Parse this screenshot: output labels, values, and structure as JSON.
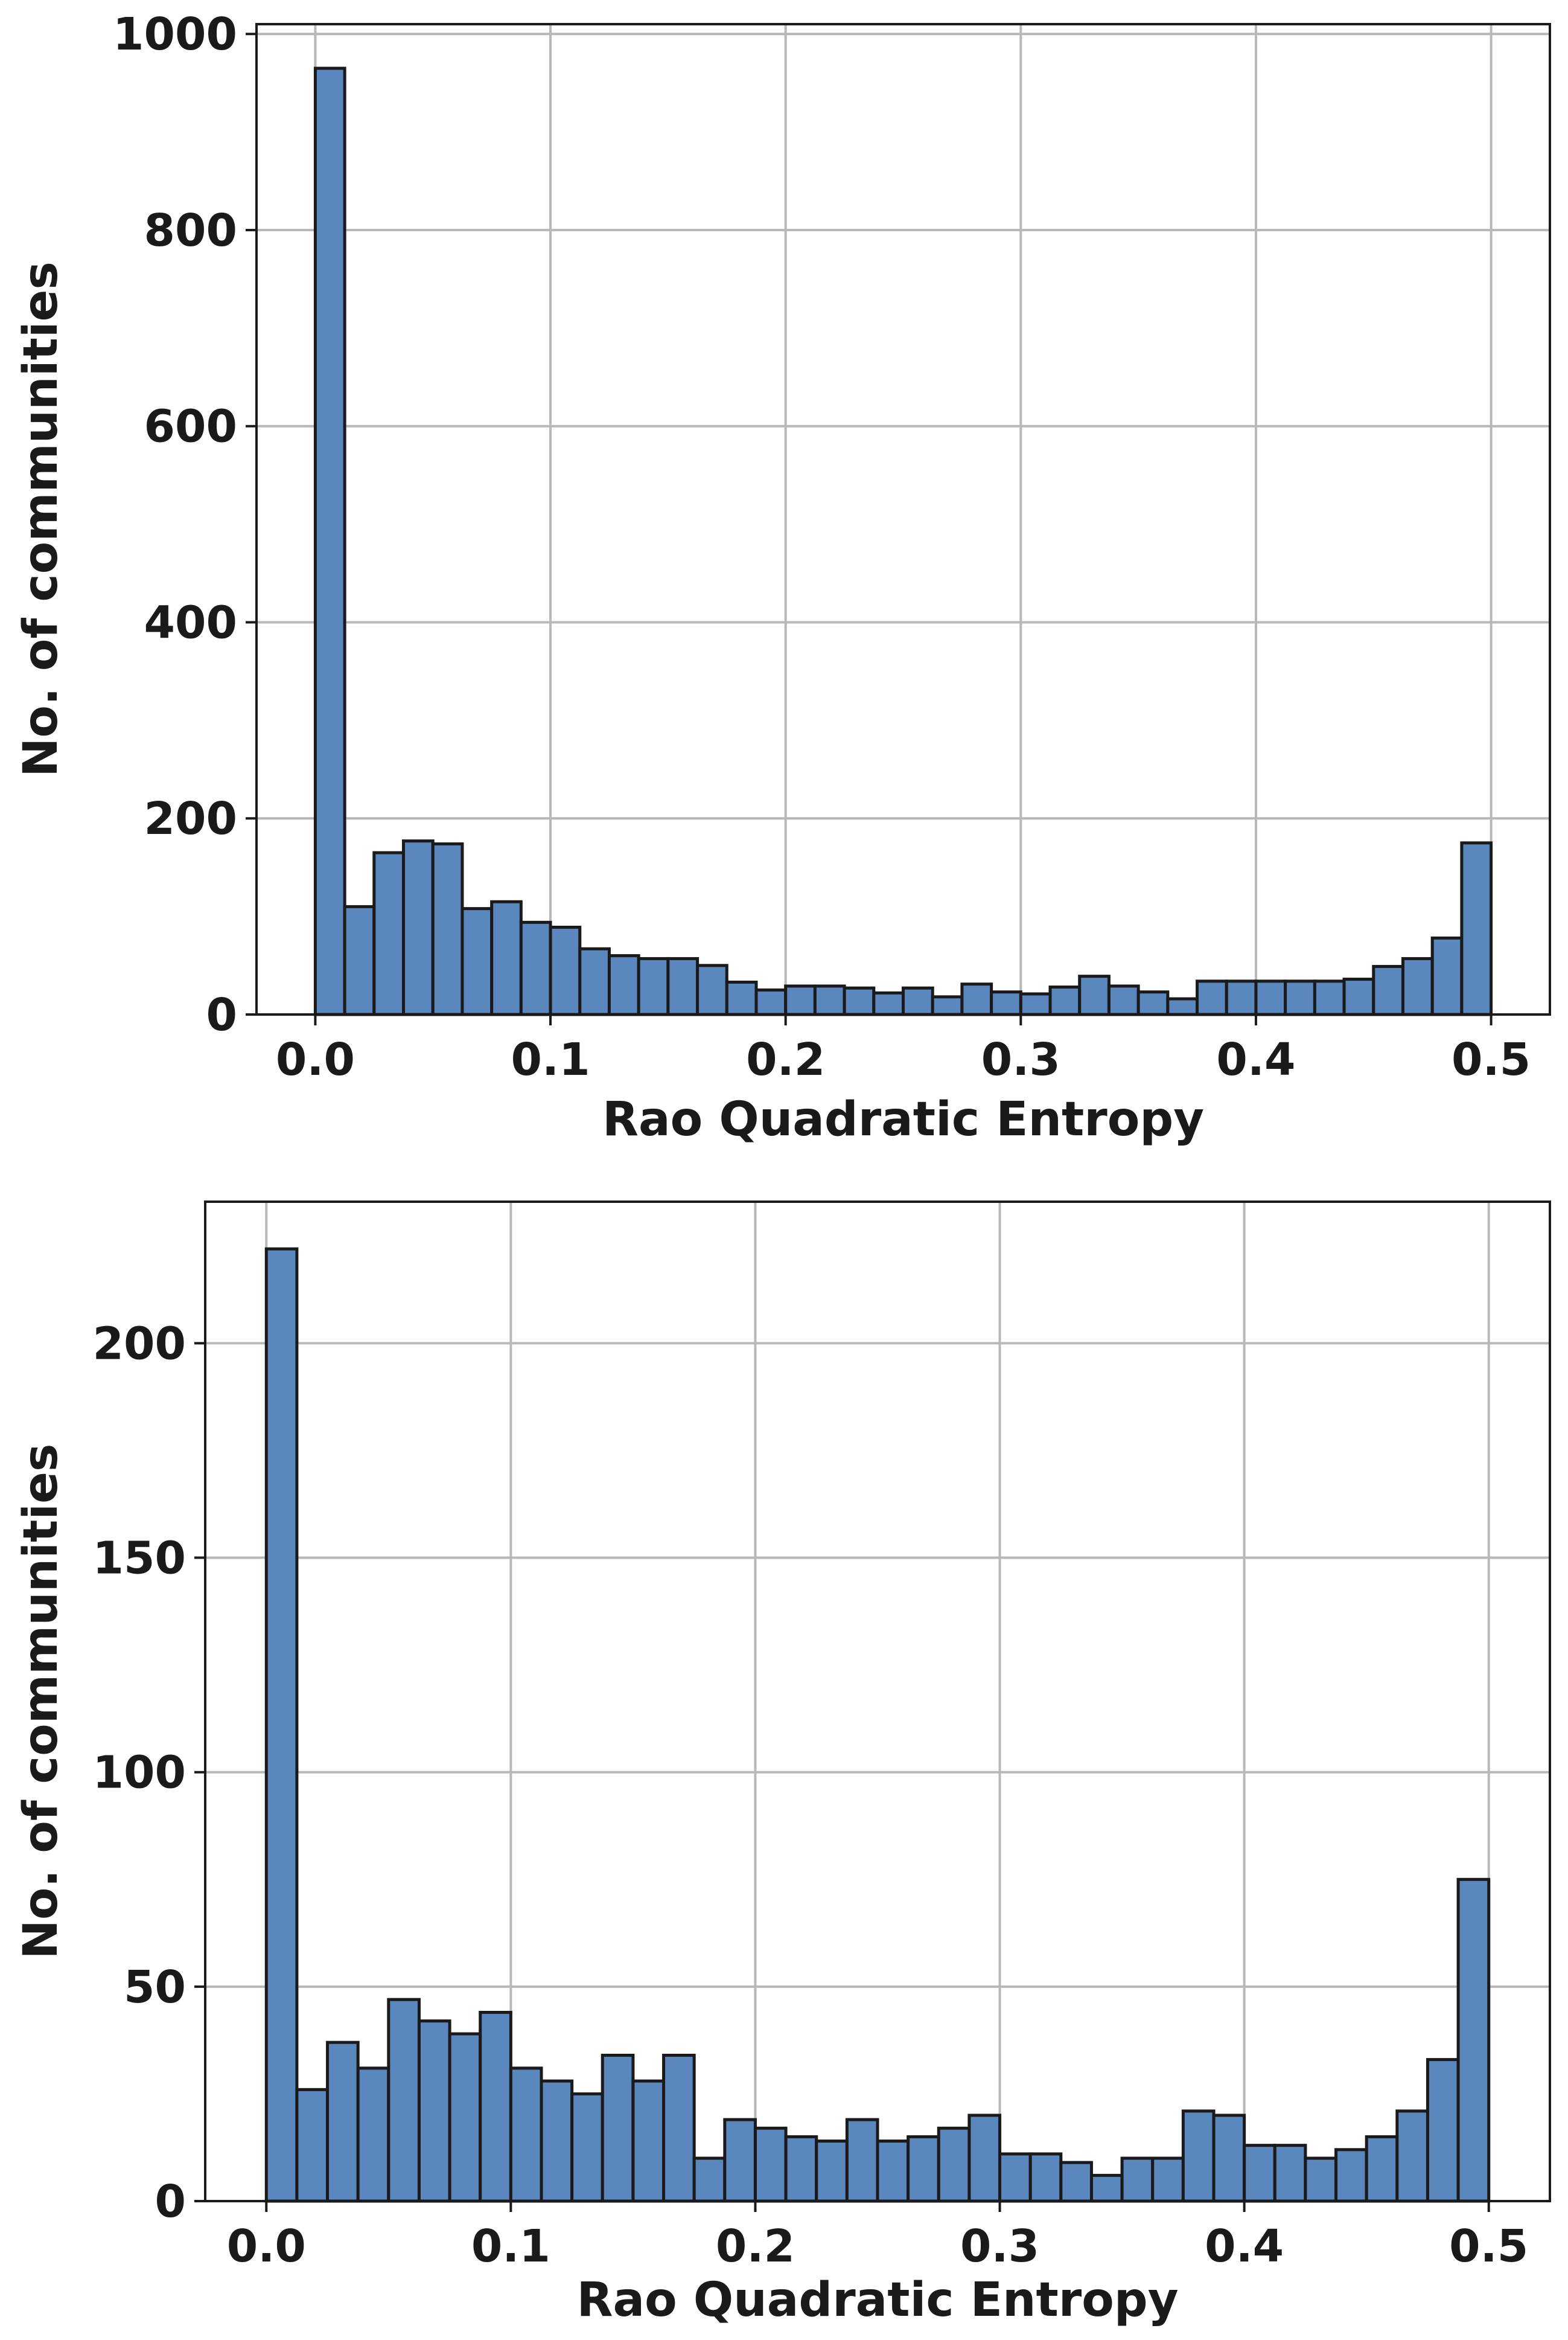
{
  "colors": {
    "bar_fill": "#5b87bf",
    "bar_edge": "#1a1a1a",
    "grid": "#b8b8b8"
  },
  "chart_data": [
    {
      "type": "bar",
      "xlabel": "Rao Quadratic Entropy",
      "ylabel": "No. of communities",
      "xlim": [
        -0.025,
        0.525
      ],
      "ylim": [
        0,
        1010
      ],
      "xticks": [
        0.0,
        0.1,
        0.2,
        0.3,
        0.4,
        0.5
      ],
      "xtick_labels": [
        "0.0",
        "0.1",
        "0.2",
        "0.3",
        "0.4",
        "0.5"
      ],
      "yticks": [
        0,
        200,
        400,
        600,
        800,
        1000
      ],
      "ytick_labels": [
        "0",
        "200",
        "400",
        "600",
        "800",
        "1000"
      ],
      "grid": true,
      "bin_edges": [
        0.0,
        0.5
      ],
      "values": [
        965,
        110,
        165,
        177,
        174,
        108,
        115,
        94,
        89,
        67,
        60,
        57,
        57,
        50,
        33,
        25,
        29,
        29,
        27,
        22,
        27,
        18,
        31,
        23,
        21,
        28,
        39,
        29,
        23,
        16,
        34,
        34,
        34,
        34,
        34,
        36,
        49,
        57,
        78,
        175
      ]
    },
    {
      "type": "bar",
      "xlabel": "Rao Quadratic Entropy",
      "ylabel": "No. of communities",
      "xlim": [
        -0.025,
        0.525
      ],
      "ylim": [
        0,
        233
      ],
      "xticks": [
        0.0,
        0.1,
        0.2,
        0.3,
        0.4,
        0.5
      ],
      "xtick_labels": [
        "0.0",
        "0.1",
        "0.2",
        "0.3",
        "0.4",
        "0.5"
      ],
      "yticks": [
        0,
        50,
        100,
        150,
        200
      ],
      "ytick_labels": [
        "0",
        "50",
        "100",
        "150",
        "200"
      ],
      "grid": true,
      "bin_edges": [
        0.0,
        0.5
      ],
      "values": [
        222,
        26,
        37,
        31,
        47,
        42,
        39,
        44,
        31,
        28,
        25,
        34,
        28,
        34,
        10,
        19,
        17,
        15,
        14,
        19,
        14,
        15,
        17,
        20,
        11,
        11,
        9,
        6,
        10,
        10,
        21,
        20,
        13,
        13,
        10,
        12,
        15,
        21,
        33,
        75
      ]
    }
  ]
}
